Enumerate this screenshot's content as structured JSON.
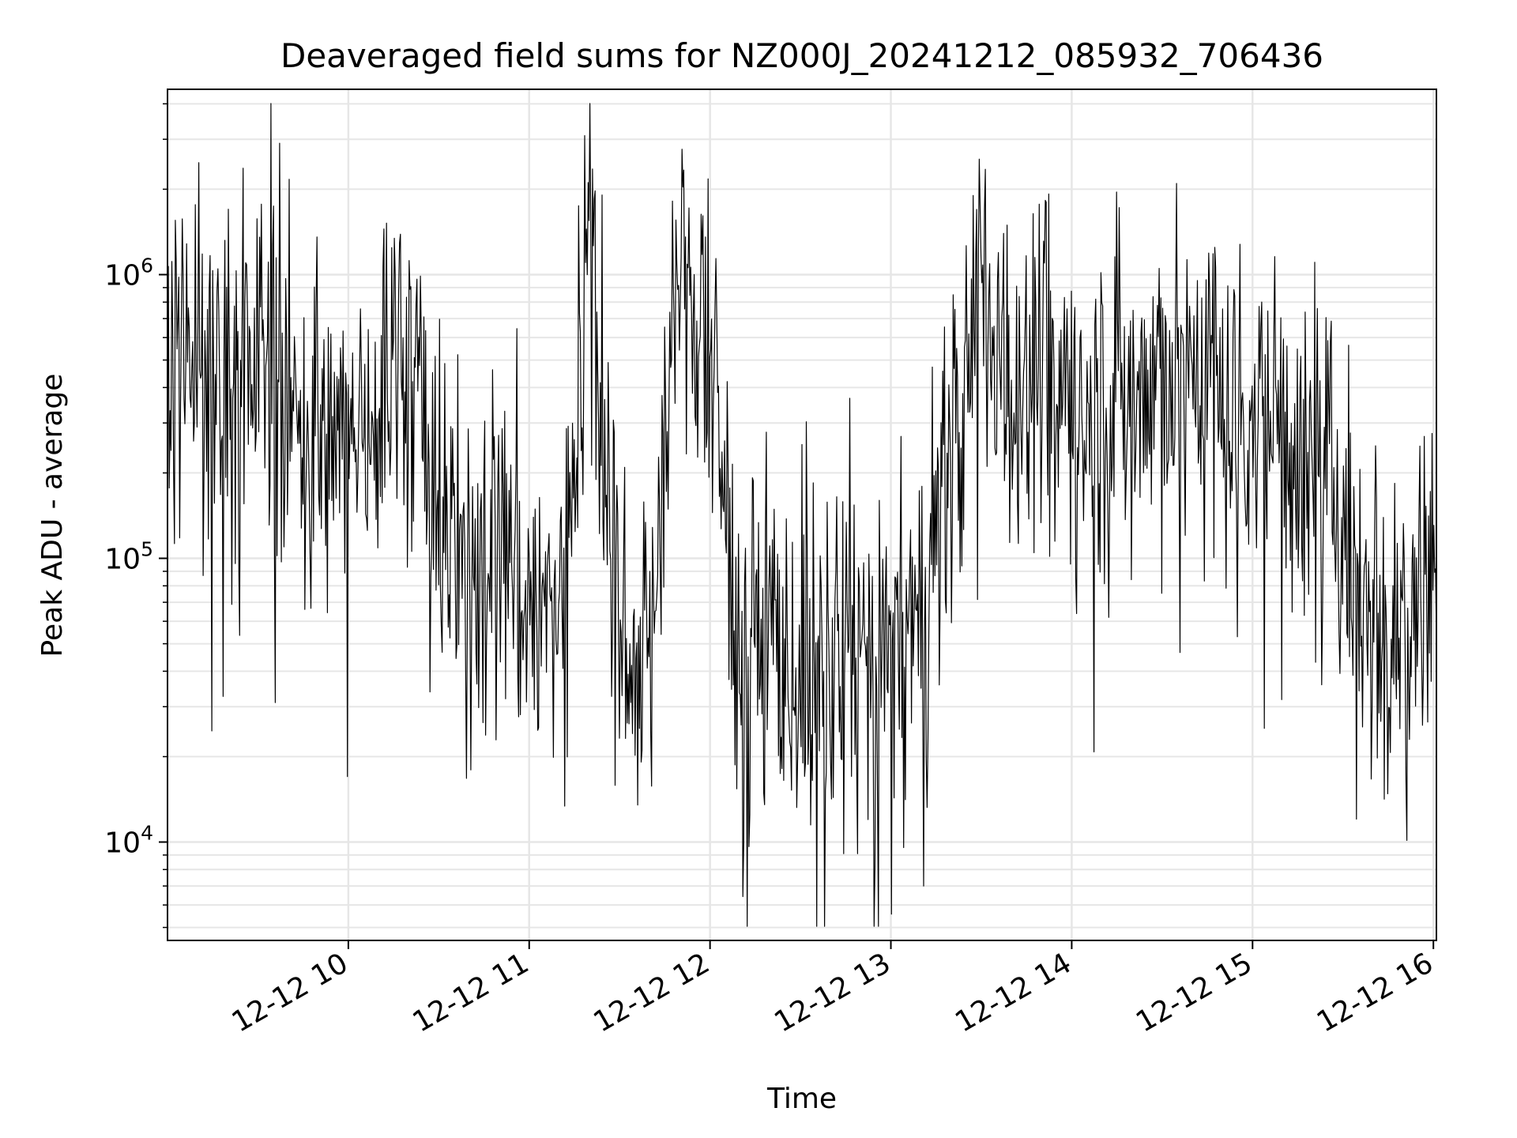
{
  "chart_data": {
    "type": "line",
    "title": "Deaveraged field sums for NZ000J_20241212_085932_706436",
    "xlabel": "Time",
    "ylabel": "Peak ADU - average",
    "x_scale": "time",
    "y_scale": "log",
    "xlim": [
      "2024-12-12 09:00",
      "2024-12-12 16:01"
    ],
    "ylim": [
      4500,
      4500000
    ],
    "grid": true,
    "legend": "none",
    "line_color": "#000000",
    "grid_color": "#e6e6e6",
    "x_ticks": [
      {
        "t": "2024-12-12 10:00",
        "label": "12-12 10"
      },
      {
        "t": "2024-12-12 11:00",
        "label": "12-12 11"
      },
      {
        "t": "2024-12-12 12:00",
        "label": "12-12 12"
      },
      {
        "t": "2024-12-12 13:00",
        "label": "12-12 13"
      },
      {
        "t": "2024-12-12 14:00",
        "label": "12-12 14"
      },
      {
        "t": "2024-12-12 15:00",
        "label": "12-12 15"
      },
      {
        "t": "2024-12-12 16:00",
        "label": "12-12 16"
      }
    ],
    "y_ticks": [
      {
        "value": 10000,
        "base": "10",
        "exp": "4"
      },
      {
        "value": 100000,
        "base": "10",
        "exp": "5"
      },
      {
        "value": 1000000,
        "base": "10",
        "exp": "6"
      }
    ],
    "series": [
      {
        "x": [
          "2024-12-12 09:00",
          "2024-12-12 09:10",
          "2024-12-12 09:20",
          "2024-12-12 09:30",
          "2024-12-12 09:40",
          "2024-12-12 09:50",
          "2024-12-12 10:00",
          "2024-12-12 10:10",
          "2024-12-12 10:20",
          "2024-12-12 10:30",
          "2024-12-12 10:40",
          "2024-12-12 10:50",
          "2024-12-12 11:00",
          "2024-12-12 11:10",
          "2024-12-12 11:20",
          "2024-12-12 11:30",
          "2024-12-12 11:40",
          "2024-12-12 11:50",
          "2024-12-12 12:00",
          "2024-12-12 12:10",
          "2024-12-12 12:20",
          "2024-12-12 12:30",
          "2024-12-12 12:40",
          "2024-12-12 12:50",
          "2024-12-12 13:00",
          "2024-12-12 13:10",
          "2024-12-12 13:20",
          "2024-12-12 13:30",
          "2024-12-12 13:40",
          "2024-12-12 13:50",
          "2024-12-12 14:00",
          "2024-12-12 14:10",
          "2024-12-12 14:20",
          "2024-12-12 14:30",
          "2024-12-12 14:40",
          "2024-12-12 14:50",
          "2024-12-12 15:00",
          "2024-12-12 15:10",
          "2024-12-12 15:20",
          "2024-12-12 15:30",
          "2024-12-12 15:40",
          "2024-12-12 15:50",
          "2024-12-12 16:00",
          "2024-12-12 16:01"
        ],
        "y": [
          450000,
          500000,
          420000,
          550000,
          380000,
          220000,
          250000,
          400000,
          700000,
          120000,
          90000,
          130000,
          70000,
          60000,
          1500000,
          60000,
          45000,
          1100000,
          500000,
          45000,
          60000,
          35000,
          40000,
          45000,
          40000,
          60000,
          200000,
          800000,
          450000,
          380000,
          400000,
          350000,
          380000,
          420000,
          500000,
          380000,
          350000,
          300000,
          180000,
          130000,
          80000,
          60000,
          100000,
          80000
        ]
      }
    ]
  }
}
